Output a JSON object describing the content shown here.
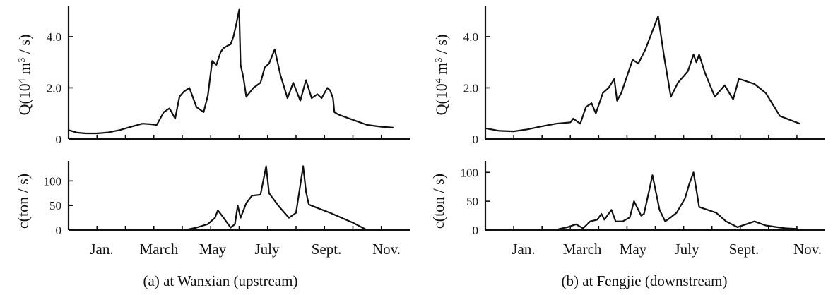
{
  "chart_data": [
    {
      "type": "line",
      "panel": "a",
      "caption": "(a) at Wanxian (upstream)",
      "month_labels": [
        "Jan.",
        "March",
        "May",
        "July",
        "Sept.",
        "Nov."
      ],
      "discharge": {
        "ylabel_main": "Q(10",
        "ylabel_sup1": "4",
        "ylabel_mid": " m",
        "ylabel_sup2": "3",
        "ylabel_end": " / s)",
        "ylim": [
          0,
          5.1
        ],
        "ticks": [
          0,
          2.0,
          4.0
        ],
        "tick_labels": [
          "0",
          "2.0",
          "4.0"
        ],
        "x_range": [
          0,
          12
        ],
        "series": [
          {
            "x": [
              0.0,
              0.3,
              0.6,
              1.0,
              1.4,
              1.8,
              2.2,
              2.6,
              2.9,
              3.1,
              3.35,
              3.55,
              3.75,
              3.9,
              4.05,
              4.25,
              4.5,
              4.75,
              4.9,
              5.05,
              5.2,
              5.35,
              5.45,
              5.6,
              5.7,
              5.8,
              5.9,
              6.0,
              6.05,
              6.15,
              6.25,
              6.5,
              6.75,
              6.9,
              7.05,
              7.25,
              7.45,
              7.7,
              7.9,
              8.15,
              8.35,
              8.55,
              8.75,
              8.9,
              9.1,
              9.2,
              9.3,
              9.35,
              9.5,
              10.0,
              10.5,
              11.0,
              11.4
            ],
            "y": [
              0.35,
              0.25,
              0.22,
              0.22,
              0.26,
              0.35,
              0.48,
              0.6,
              0.58,
              0.55,
              1.05,
              1.2,
              0.8,
              1.65,
              1.85,
              2.0,
              1.25,
              1.05,
              1.7,
              3.05,
              2.9,
              3.4,
              3.55,
              3.65,
              3.7,
              4.0,
              4.5,
              5.05,
              2.9,
              2.4,
              1.65,
              2.0,
              2.2,
              2.8,
              2.95,
              3.5,
              2.5,
              1.6,
              2.2,
              1.5,
              2.3,
              1.6,
              1.75,
              1.6,
              2.0,
              1.9,
              1.6,
              1.05,
              0.95,
              0.75,
              0.55,
              0.48,
              0.45
            ]
          }
        ]
      },
      "sediment": {
        "ylabel": "c(ton / s)",
        "ylim": [
          0,
          135
        ],
        "ticks": [
          0,
          50,
          100
        ],
        "tick_labels": [
          "0",
          "50",
          "100"
        ],
        "x_range": [
          0,
          12
        ],
        "series": [
          {
            "x": [
              4.1,
              4.5,
              4.9,
              5.15,
              5.25,
              5.45,
              5.7,
              5.85,
              5.95,
              6.05,
              6.25,
              6.45,
              6.75,
              6.95,
              7.05,
              7.4,
              7.75,
              8.0,
              8.25,
              8.35,
              8.45,
              8.75,
              9.2,
              9.6,
              10.0,
              10.5
            ],
            "y": [
              0,
              5,
              12,
              25,
              40,
              25,
              5,
              12,
              50,
              25,
              55,
              70,
              72,
              130,
              75,
              48,
              25,
              35,
              130,
              78,
              52,
              45,
              35,
              25,
              15,
              0
            ]
          }
        ]
      }
    },
    {
      "type": "line",
      "panel": "b",
      "caption": "(b) at Fengjie (downstream)",
      "month_labels": [
        "Jan.",
        "March",
        "May",
        "July",
        "Sept.",
        "Nov."
      ],
      "discharge": {
        "ylabel_main": "Q(10",
        "ylabel_sup1": "4",
        "ylabel_mid": " m",
        "ylabel_sup2": "3",
        "ylabel_end": " / s)",
        "ylim": [
          0,
          5.1
        ],
        "ticks": [
          0,
          2.0,
          4.0
        ],
        "tick_labels": [
          "0",
          "2.0",
          "4.0"
        ],
        "x_range": [
          0,
          12
        ],
        "series": [
          {
            "x": [
              0.0,
              0.5,
              1.0,
              1.5,
              2.0,
              2.5,
              3.0,
              3.1,
              3.35,
              3.55,
              3.75,
              3.9,
              4.15,
              4.35,
              4.55,
              4.65,
              4.8,
              5.2,
              5.4,
              5.65,
              6.1,
              6.3,
              6.55,
              6.8,
              7.15,
              7.35,
              7.45,
              7.55,
              7.75,
              8.1,
              8.45,
              8.75,
              8.95,
              9.1,
              9.5,
              9.9,
              10.4,
              10.75,
              11.1
            ],
            "y": [
              0.42,
              0.32,
              0.3,
              0.38,
              0.5,
              0.6,
              0.65,
              0.8,
              0.6,
              1.25,
              1.4,
              1.0,
              1.8,
              2.0,
              2.35,
              1.5,
              1.8,
              3.1,
              2.95,
              3.5,
              4.8,
              3.3,
              1.65,
              2.2,
              2.65,
              3.3,
              3.0,
              3.3,
              2.6,
              1.65,
              2.1,
              1.55,
              2.35,
              2.3,
              2.15,
              1.8,
              0.9,
              0.75,
              0.6
            ]
          }
        ]
      },
      "sediment": {
        "ylabel": "c(ton / s)",
        "ylim": [
          0,
          115
        ],
        "ticks": [
          0,
          50,
          100
        ],
        "tick_labels": [
          "0",
          "50",
          "100"
        ],
        "x_range": [
          0,
          12
        ],
        "series": [
          {
            "x": [
              2.6,
              2.9,
              3.2,
              3.45,
              3.7,
              3.95,
              4.1,
              4.2,
              4.45,
              4.6,
              4.85,
              5.1,
              5.25,
              5.5,
              5.6,
              5.7,
              5.9,
              6.15,
              6.35,
              6.55,
              6.75,
              7.05,
              7.2,
              7.35,
              7.55,
              7.85,
              8.15,
              8.5,
              8.9,
              9.2,
              9.5,
              9.9,
              10.3,
              10.6,
              11.0
            ],
            "y": [
              2,
              5,
              10,
              3,
              15,
              18,
              28,
              18,
              35,
              15,
              15,
              22,
              50,
              25,
              28,
              50,
              95,
              35,
              15,
              22,
              30,
              55,
              80,
              100,
              40,
              35,
              30,
              15,
              5,
              10,
              15,
              8,
              5,
              3,
              2
            ]
          }
        ]
      }
    }
  ]
}
